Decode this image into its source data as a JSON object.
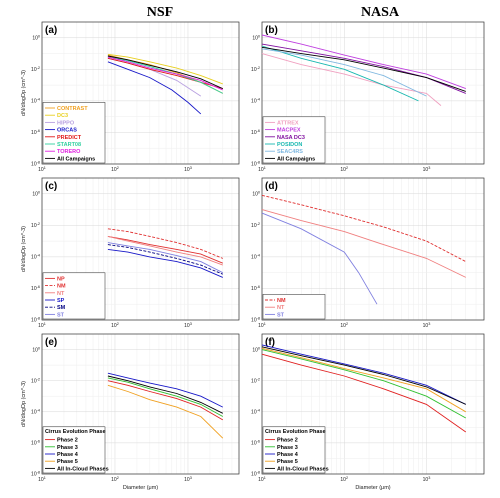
{
  "column_titles": [
    "NSF",
    "NASA"
  ],
  "colors": {
    "CONTRAST": "#f0a020",
    "DC3": "#e8d020",
    "HIPPO": "#b8a0e0",
    "ORCAS": "#1818c8",
    "PREDICT": "#e01818",
    "START08": "#30d0a0",
    "TORERO": "#e020e0",
    "ATTREX": "#f0a0c0",
    "MACPEX": "#c040e0",
    "NASA DC3": "#8010a0",
    "POSIDON": "#18b8b0",
    "SEAC4RS": "#80b8e0",
    "all": "#000000",
    "NP": "#e03030",
    "NM": "#e03030",
    "NT": "#f08080",
    "SP": "#1818c8",
    "SM": "#000080",
    "ST": "#8080e0",
    "Phase 2": "#e02020",
    "Phase 3": "#30c030",
    "Phase 4": "#1818c8",
    "Phase 5": "#f0a020"
  },
  "chart_data": [
    {
      "panel": "(a)",
      "type": "line",
      "x_scale": "log",
      "y_scale": "log",
      "xlim": [
        10,
        5000
      ],
      "ylim": [
        1e-08,
        10
      ],
      "xticks": [
        "10^1",
        "10^2",
        "10^3"
      ],
      "yticks": [
        "10^0",
        "10^-2",
        "10^-4",
        "10^-6",
        "10^-8"
      ],
      "ylabel": "dN/dlogDp (cm^-3)",
      "xlabel": "",
      "legend": "left",
      "series": [
        {
          "name": "CONTRAST",
          "x": [
            80,
            150,
            300,
            700,
            1500,
            3000
          ],
          "y": [
            0.08,
            0.04,
            0.02,
            0.006,
            0.0015,
            0.0003
          ]
        },
        {
          "name": "DC3",
          "x": [
            80,
            150,
            300,
            700,
            1500,
            3000
          ],
          "y": [
            0.09,
            0.06,
            0.03,
            0.012,
            0.004,
            0.0012
          ]
        },
        {
          "name": "HIPPO",
          "x": [
            80,
            150,
            300,
            700,
            1500
          ],
          "y": [
            0.05,
            0.025,
            0.01,
            0.002,
            0.0002
          ]
        },
        {
          "name": "ORCAS",
          "x": [
            80,
            150,
            300,
            600,
            1000,
            1500
          ],
          "y": [
            0.03,
            0.01,
            0.003,
            0.0005,
            8e-05,
            1.5e-05
          ]
        },
        {
          "name": "PREDICT",
          "x": [
            80,
            150,
            300,
            700,
            1500,
            3000
          ],
          "y": [
            0.05,
            0.025,
            0.01,
            0.004,
            0.0015,
            0.0006
          ]
        },
        {
          "name": "START08",
          "x": [
            80,
            150,
            300,
            700,
            1500,
            3000
          ],
          "y": [
            0.06,
            0.035,
            0.015,
            0.005,
            0.0015,
            0.0003
          ]
        },
        {
          "name": "TORERO",
          "x": [
            80,
            150,
            300,
            700,
            1500,
            3000
          ],
          "y": [
            0.06,
            0.03,
            0.012,
            0.005,
            0.002,
            0.0005
          ]
        },
        {
          "name": "All Campaigns",
          "x": [
            80,
            150,
            300,
            700,
            1500,
            3000
          ],
          "y": [
            0.07,
            0.04,
            0.018,
            0.007,
            0.0025,
            0.0006
          ]
        }
      ]
    },
    {
      "panel": "(b)",
      "type": "line",
      "x_scale": "log",
      "y_scale": "log",
      "xlim": [
        10,
        5000
      ],
      "ylim": [
        1e-08,
        10
      ],
      "xticks": [
        "10^1",
        "10^2",
        "10^3"
      ],
      "yticks": [
        "10^0",
        "10^-2",
        "10^-4",
        "10^-6",
        "10^-8"
      ],
      "xlabel": "",
      "ylabel": "",
      "legend": "left",
      "series": [
        {
          "name": "ATTREX",
          "x": [
            10,
            30,
            100,
            300,
            1000,
            1500
          ],
          "y": [
            0.1,
            0.02,
            0.005,
            0.001,
            0.0003,
            5e-05
          ]
        },
        {
          "name": "MACPEX",
          "x": [
            10,
            30,
            100,
            300,
            1000,
            3000
          ],
          "y": [
            1.5,
            0.4,
            0.08,
            0.02,
            0.005,
            0.0006
          ]
        },
        {
          "name": "NASA DC3",
          "x": [
            10,
            30,
            100,
            300,
            1000,
            3000
          ],
          "y": [
            0.4,
            0.15,
            0.05,
            0.015,
            0.003,
            0.0003
          ]
        },
        {
          "name": "POSIDON",
          "x": [
            10,
            30,
            100,
            300,
            800
          ],
          "y": [
            0.3,
            0.05,
            0.01,
            0.001,
            0.0001
          ]
        },
        {
          "name": "SEAC4RS",
          "x": [
            10,
            30,
            100,
            300,
            1000
          ],
          "y": [
            0.2,
            0.08,
            0.02,
            0.004,
            0.0002
          ]
        },
        {
          "name": "All Campaigns",
          "x": [
            10,
            30,
            100,
            300,
            1000,
            3000
          ],
          "y": [
            0.25,
            0.1,
            0.04,
            0.012,
            0.003,
            0.0004
          ]
        }
      ]
    },
    {
      "panel": "(c)",
      "type": "line",
      "x_scale": "log",
      "y_scale": "log",
      "xlim": [
        10,
        5000
      ],
      "ylim": [
        1e-08,
        10
      ],
      "xticks": [
        "10^1",
        "10^2",
        "10^3"
      ],
      "yticks": [
        "10^0",
        "10^-2",
        "10^-4",
        "10^-6",
        "10^-8"
      ],
      "ylabel": "dN/dlogDp (cm^-3)",
      "xlabel": "",
      "legend": "left",
      "series": [
        {
          "name": "NP",
          "x": [
            80,
            150,
            300,
            700,
            1500,
            3000
          ],
          "y": [
            0.002,
            0.0012,
            0.0006,
            0.0003,
            0.00015,
            4e-05
          ]
        },
        {
          "name": "NM",
          "x": [
            80,
            150,
            300,
            700,
            1500,
            3000
          ],
          "y": [
            0.006,
            0.004,
            0.002,
            0.0008,
            0.0003,
            8e-05
          ]
        },
        {
          "name": "NT",
          "x": [
            80,
            150,
            300,
            700,
            1500,
            3000
          ],
          "y": [
            0.002,
            0.001,
            0.0005,
            0.0002,
            0.0001,
            3e-05
          ]
        },
        {
          "name": "SP",
          "x": [
            80,
            150,
            300,
            700,
            1500,
            3000
          ],
          "y": [
            0.0003,
            0.0002,
            0.0001,
            5e-05,
            2e-05,
            5e-06
          ]
        },
        {
          "name": "SM",
          "x": [
            80,
            150,
            300,
            700,
            1500,
            3000
          ],
          "y": [
            0.0006,
            0.0004,
            0.0002,
            8e-05,
            3e-05,
            8e-06
          ]
        },
        {
          "name": "ST",
          "x": [
            80,
            150,
            300,
            700,
            1500,
            3000
          ],
          "y": [
            0.0008,
            0.0005,
            0.0003,
            0.00012,
            5e-05,
            1e-05
          ]
        }
      ]
    },
    {
      "panel": "(d)",
      "type": "line",
      "x_scale": "log",
      "y_scale": "log",
      "xlim": [
        10,
        5000
      ],
      "ylim": [
        1e-08,
        10
      ],
      "xticks": [
        "10^1",
        "10^2",
        "10^3"
      ],
      "yticks": [
        "10^0",
        "10^-2",
        "10^-4",
        "10^-6",
        "10^-8"
      ],
      "xlabel": "",
      "ylabel": "",
      "legend": "left",
      "series": [
        {
          "name": "NM",
          "x": [
            10,
            30,
            100,
            300,
            1000,
            3000
          ],
          "y": [
            0.8,
            0.2,
            0.04,
            0.008,
            0.001,
            5e-05
          ]
        },
        {
          "name": "NT",
          "x": [
            10,
            30,
            100,
            300,
            1000,
            3000
          ],
          "y": [
            0.1,
            0.02,
            0.004,
            0.0006,
            8e-05,
            5e-06
          ]
        },
        {
          "name": "ST",
          "x": [
            10,
            30,
            100,
            150,
            250
          ],
          "y": [
            0.06,
            0.006,
            0.0002,
            1e-05,
            1e-07
          ]
        }
      ]
    },
    {
      "panel": "(e)",
      "type": "line",
      "x_scale": "log",
      "y_scale": "log",
      "xlim": [
        10,
        5000
      ],
      "ylim": [
        1e-08,
        10
      ],
      "xticks": [
        "10^1",
        "10^2",
        "10^3"
      ],
      "yticks": [
        "10^0",
        "10^-2",
        "10^-4",
        "10^-6",
        "10^-8"
      ],
      "ylabel": "dN/dlogDp (cm^-3)",
      "xlabel": "Diameter (μm)",
      "legend_title": "Cirrus Evolution Phase",
      "legend": "left",
      "series": [
        {
          "name": "Phase 2",
          "x": [
            80,
            150,
            300,
            700,
            1500,
            3000
          ],
          "y": [
            0.01,
            0.005,
            0.002,
            0.0007,
            0.0002,
            3e-05
          ]
        },
        {
          "name": "Phase 3",
          "x": [
            80,
            150,
            300,
            700,
            1500,
            3000
          ],
          "y": [
            0.015,
            0.008,
            0.003,
            0.001,
            0.0003,
            5e-05
          ]
        },
        {
          "name": "Phase 4",
          "x": [
            80,
            150,
            300,
            700,
            1500,
            3000
          ],
          "y": [
            0.03,
            0.015,
            0.007,
            0.003,
            0.001,
            0.0002
          ]
        },
        {
          "name": "Phase 5",
          "x": [
            80,
            150,
            300,
            700,
            1500,
            3000
          ],
          "y": [
            0.005,
            0.002,
            0.0006,
            0.0002,
            5e-05,
            2e-06
          ]
        },
        {
          "name": "All In-Cloud Phases",
          "x": [
            80,
            150,
            300,
            700,
            1500,
            3000
          ],
          "y": [
            0.02,
            0.01,
            0.004,
            0.0015,
            0.0004,
            8e-05
          ]
        }
      ]
    },
    {
      "panel": "(f)",
      "type": "line",
      "x_scale": "log",
      "y_scale": "log",
      "xlim": [
        10,
        5000
      ],
      "ylim": [
        1e-08,
        10
      ],
      "xticks": [
        "10^1",
        "10^2",
        "10^3"
      ],
      "yticks": [
        "10^0",
        "10^-2",
        "10^-4",
        "10^-6",
        "10^-8"
      ],
      "xlabel": "Diameter (μm)",
      "ylabel": "",
      "legend_title": "Cirrus Evolution Phase",
      "legend": "left",
      "series": [
        {
          "name": "Phase 2",
          "x": [
            10,
            30,
            100,
            300,
            1000,
            3000
          ],
          "y": [
            0.5,
            0.1,
            0.02,
            0.003,
            0.0003,
            5e-06
          ]
        },
        {
          "name": "Phase 3",
          "x": [
            10,
            30,
            100,
            300,
            1000,
            3000
          ],
          "y": [
            1.0,
            0.25,
            0.05,
            0.01,
            0.001,
            4e-05
          ]
        },
        {
          "name": "Phase 4",
          "x": [
            10,
            30,
            100,
            300,
            1000,
            3000
          ],
          "y": [
            2.0,
            0.5,
            0.12,
            0.03,
            0.005,
            0.0003
          ]
        },
        {
          "name": "Phase 5",
          "x": [
            10,
            30,
            100,
            300,
            1000,
            3000
          ],
          "y": [
            1.2,
            0.3,
            0.06,
            0.015,
            0.003,
            0.0001
          ]
        },
        {
          "name": "All In-Cloud Phases",
          "x": [
            10,
            30,
            100,
            300,
            1000,
            3000
          ],
          "y": [
            1.5,
            0.4,
            0.1,
            0.025,
            0.004,
            0.0003
          ]
        }
      ]
    }
  ]
}
